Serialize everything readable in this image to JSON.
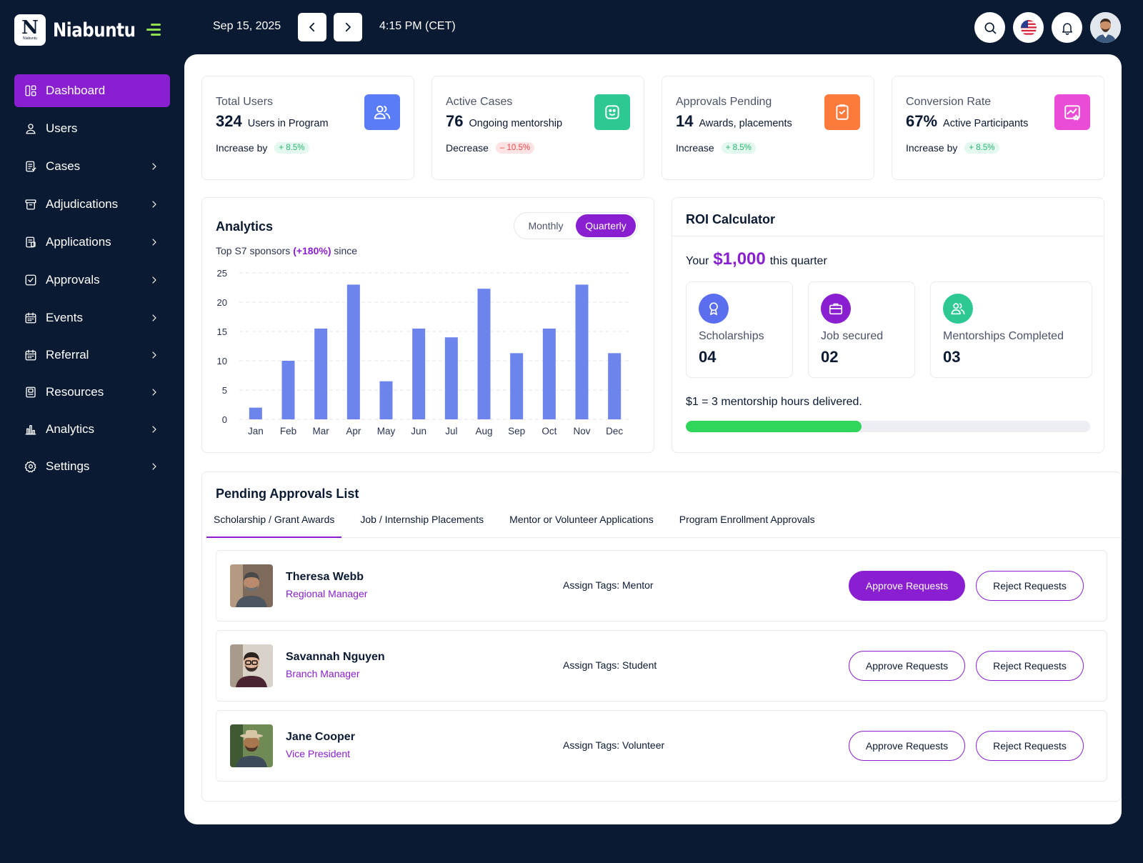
{
  "brand": {
    "name": "Niabuntu",
    "logo_letter": "N",
    "logo_small": "Niabuntu"
  },
  "header": {
    "date": "Sep 15, 2025",
    "time": "4:15 PM (CET)"
  },
  "sidebar": {
    "items": [
      {
        "label": "Dashboard",
        "icon": "dashboard-icon",
        "active": true,
        "chevron": false
      },
      {
        "label": "Users",
        "icon": "user-icon",
        "active": false,
        "chevron": false
      },
      {
        "label": "Cases",
        "icon": "cases-icon",
        "active": false,
        "chevron": true
      },
      {
        "label": "Adjudications",
        "icon": "archive-icon",
        "active": false,
        "chevron": true
      },
      {
        "label": "Applications",
        "icon": "application-icon",
        "active": false,
        "chevron": true
      },
      {
        "label": "Approvals",
        "icon": "check-square-icon",
        "active": false,
        "chevron": true
      },
      {
        "label": "Events",
        "icon": "calendar-icon",
        "active": false,
        "chevron": true
      },
      {
        "label": "Referral",
        "icon": "calendar-icon",
        "active": false,
        "chevron": true
      },
      {
        "label": "Resources",
        "icon": "resources-icon",
        "active": false,
        "chevron": true
      },
      {
        "label": "Analytics",
        "icon": "bar-chart-icon",
        "active": false,
        "chevron": true
      },
      {
        "label": "Settings",
        "icon": "gear-icon",
        "active": false,
        "chevron": true
      }
    ]
  },
  "stats": [
    {
      "title": "Total Users",
      "value": "324",
      "sub": "Users in Program",
      "foot": "Increase by",
      "change": "+ 8.5%",
      "trend": "up",
      "color": "#5b7cf7",
      "icon": "users-icon"
    },
    {
      "title": "Active Cases",
      "value": "76",
      "sub": "Ongoing mentorship",
      "foot": "Decrease",
      "change": "– 10.5%",
      "trend": "down",
      "color": "#2ec993",
      "icon": "face-icon"
    },
    {
      "title": "Approvals Pending",
      "value": "14",
      "sub": "Awards, placements",
      "foot": "Increase",
      "change": "+ 8.5%",
      "trend": "up",
      "color": "#fb7a3c",
      "icon": "clipboard-icon"
    },
    {
      "title": "Conversion Rate",
      "value": "67%",
      "sub": "Active Participants",
      "foot": "Increase by",
      "change": "+ 8.5%",
      "trend": "up",
      "color": "#ea4bd7",
      "icon": "chart-star-icon"
    }
  ],
  "analytics": {
    "title": "Analytics",
    "sub_prefix": "Top S7 sponsors",
    "sub_highlight": "(+180%)",
    "sub_suffix": "since",
    "toggle": {
      "monthly": "Monthly",
      "quarterly": "Quarterly",
      "selected": "Quarterly"
    }
  },
  "chart_data": {
    "type": "bar",
    "categories": [
      "Jan",
      "Feb",
      "Mar",
      "Apr",
      "May",
      "Jun",
      "Jul",
      "Aug",
      "Sep",
      "Oct",
      "Nov",
      "Dec"
    ],
    "values": [
      2,
      10,
      15.5,
      23,
      6.5,
      15.5,
      14,
      22.3,
      11.3,
      15.5,
      23,
      11.3
    ],
    "title": "",
    "xlabel": "",
    "ylabel": "",
    "ylim": [
      0,
      25
    ],
    "yticks": [
      0,
      5,
      10,
      15,
      20,
      25
    ],
    "grid": true,
    "bar_color": "#6c84ec"
  },
  "roi": {
    "title": "ROI Calculator",
    "prefix": "Your",
    "amount": "$1,000",
    "suffix": "this quarter",
    "cards": [
      {
        "label": "Scholarships",
        "value": "04",
        "color": "#5b6ef0",
        "icon": "award-icon"
      },
      {
        "label": "Job secured",
        "value": "02",
        "color": "#8a1fd2",
        "icon": "briefcase-icon"
      },
      {
        "label": "Mentorships Completed",
        "value": "03",
        "color": "#2ec993",
        "icon": "users-icon"
      }
    ],
    "note": "$1 = 3 mentorship hours delivered.",
    "progress": 0.435
  },
  "pending": {
    "title": "Pending Approvals List",
    "tabs": [
      "Scholarship / Grant Awards",
      "Job / Internship Placements",
      "Mentor or Volunteer Applications",
      "Program Enrollment Approvals"
    ],
    "active_tab": 0,
    "approve_label": "Approve Requests",
    "reject_label": "Reject Requests",
    "rows": [
      {
        "name": "Theresa Webb",
        "role": "Regional Manager",
        "tags": "Assign Tags: Mentor",
        "approve_primary": true
      },
      {
        "name": "Savannah Nguyen",
        "role": "Branch Manager",
        "tags": "Assign Tags: Student",
        "approve_primary": false
      },
      {
        "name": "Jane Cooper",
        "role": "Vice President",
        "tags": "Assign Tags: Volunteer",
        "approve_primary": false
      }
    ]
  }
}
